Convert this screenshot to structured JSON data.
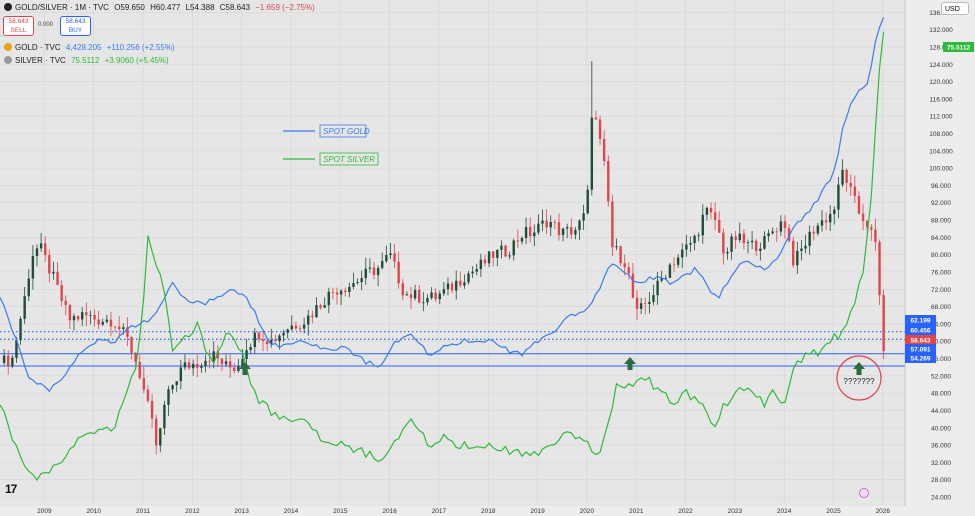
{
  "header": {
    "symbol_line": "GOLD/SILVER · 1M · TVC",
    "o": "O59.650",
    "h": "H60.477",
    "l": "L54.388",
    "c": "C58.643",
    "change": "−1.659 (−2.75%)",
    "sell_price": "58.643",
    "sell_label": "SELL",
    "spread": "0.000",
    "buy_price": "58.643",
    "buy_label": "BUY",
    "gold_line": "GOLD · TVC",
    "gold_value": "4,428.205",
    "gold_change": "+110.256 (+2.55%)",
    "silver_line": "SILVER · TVC",
    "silver_value": "75.5112",
    "silver_change": "+3.9060 (+5.45%)",
    "currency": "USD"
  },
  "colors": {
    "up": "#1f4d3a",
    "down": "#e0454b",
    "gold": "#3b7bf0",
    "silver": "#2fba3a",
    "level": "#2962ff",
    "marker": "#2e6b3a",
    "circle": "#e0454b"
  },
  "icons": [
    "gold-coin-icon",
    "silver-coin-icon",
    "up-arrow-marker-icon",
    "lightning-icon",
    "tradingview-logo-icon"
  ],
  "annotations": {
    "legend_gold": "SPOT GOLD",
    "legend_silver": "SPOT SILVER",
    "question": "???????"
  },
  "chart_data": [
    {
      "type": "candlestick",
      "series": "GOLD/SILVER ratio (monthly)",
      "x_ticks": [
        "2009",
        "2010",
        "2011",
        "2012",
        "2013",
        "2014",
        "2015",
        "2016",
        "2017",
        "2018",
        "2019",
        "2020",
        "2021",
        "2022",
        "2023",
        "2024",
        "2025",
        "2026"
      ],
      "x_range": [
        2008.2,
        2026.55
      ],
      "ylim": [
        24,
        137
      ],
      "y_ticks": [
        "136.000",
        "132.000",
        "128.000",
        "124.000",
        "120.000",
        "116.000",
        "112.000",
        "108.000",
        "104.000",
        "100.000",
        "96.000",
        "92.000",
        "88.000",
        "84.000",
        "80.000",
        "76.000",
        "72.000",
        "68.000",
        "64.000",
        "60.000",
        "56.000",
        "52.000",
        "48.000",
        "44.000",
        "40.000",
        "36.000",
        "32.000",
        "28.000",
        "24.000"
      ],
      "anchors": [
        [
          2008.2,
          55
        ],
        [
          2008.45,
          56
        ],
        [
          2008.7,
          70
        ],
        [
          2008.85,
          80
        ],
        [
          2009.0,
          82
        ],
        [
          2009.3,
          74
        ],
        [
          2009.6,
          65
        ],
        [
          2009.9,
          66
        ],
        [
          2010.2,
          65
        ],
        [
          2010.5,
          65
        ],
        [
          2010.8,
          60
        ],
        [
          2011.0,
          54
        ],
        [
          2011.3,
          40
        ],
        [
          2011.4,
          34
        ],
        [
          2011.5,
          44
        ],
        [
          2011.7,
          50
        ],
        [
          2011.9,
          54
        ],
        [
          2012.2,
          55
        ],
        [
          2012.5,
          57
        ],
        [
          2012.8,
          54
        ],
        [
          2013.0,
          54
        ],
        [
          2013.2,
          59
        ],
        [
          2013.45,
          62
        ],
        [
          2013.7,
          60
        ],
        [
          2014.0,
          63
        ],
        [
          2014.4,
          65
        ],
        [
          2014.8,
          70
        ],
        [
          2015.0,
          72
        ],
        [
          2015.3,
          73
        ],
        [
          2015.7,
          76
        ],
        [
          2015.9,
          77
        ],
        [
          2016.1,
          80
        ],
        [
          2016.4,
          71
        ],
        [
          2016.8,
          70
        ],
        [
          2017.0,
          70
        ],
        [
          2017.3,
          72
        ],
        [
          2017.6,
          75
        ],
        [
          2017.9,
          77
        ],
        [
          2018.2,
          80
        ],
        [
          2018.5,
          81
        ],
        [
          2018.8,
          85
        ],
        [
          2019.0,
          85
        ],
        [
          2019.3,
          88
        ],
        [
          2019.6,
          85
        ],
        [
          2019.9,
          86
        ],
        [
          2020.1,
          90
        ],
        [
          2020.2,
          113
        ],
        [
          2020.3,
          110
        ],
        [
          2020.5,
          97
        ],
        [
          2020.6,
          82
        ],
        [
          2020.9,
          78
        ],
        [
          2021.0,
          72
        ],
        [
          2021.1,
          66
        ],
        [
          2021.25,
          68
        ],
        [
          2021.5,
          72
        ],
        [
          2021.8,
          78
        ],
        [
          2022.0,
          80
        ],
        [
          2022.3,
          84
        ],
        [
          2022.5,
          90
        ],
        [
          2022.7,
          88
        ],
        [
          2022.9,
          80
        ],
        [
          2023.1,
          84
        ],
        [
          2023.4,
          82
        ],
        [
          2023.7,
          83
        ],
        [
          2023.9,
          86
        ],
        [
          2024.1,
          88
        ],
        [
          2024.3,
          78
        ],
        [
          2024.5,
          82
        ],
        [
          2024.7,
          86
        ],
        [
          2024.9,
          88
        ],
        [
          2025.1,
          90
        ],
        [
          2025.3,
          100
        ],
        [
          2025.4,
          96
        ],
        [
          2025.6,
          90
        ],
        [
          2025.8,
          87
        ],
        [
          2025.95,
          82
        ],
        [
          2026.05,
          68
        ],
        [
          2026.1,
          58.6
        ]
      ]
    },
    {
      "type": "line",
      "series": "SPOT GOLD",
      "ylim": [
        0,
        137
      ],
      "anchors": [
        [
          2008.2,
          56
        ],
        [
          2008.5,
          45
        ],
        [
          2008.8,
          33
        ],
        [
          2009.0,
          32
        ],
        [
          2009.2,
          30
        ],
        [
          2009.5,
          34
        ],
        [
          2009.8,
          40
        ],
        [
          2010.2,
          44
        ],
        [
          2010.5,
          43
        ],
        [
          2010.9,
          48
        ],
        [
          2011.3,
          50
        ],
        [
          2011.5,
          54
        ],
        [
          2011.7,
          60
        ],
        [
          2011.9,
          56
        ],
        [
          2012.3,
          54
        ],
        [
          2012.6,
          56
        ],
        [
          2012.9,
          58
        ],
        [
          2013.2,
          56
        ],
        [
          2013.4,
          51
        ],
        [
          2013.6,
          44
        ],
        [
          2013.9,
          42
        ],
        [
          2014.3,
          44
        ],
        [
          2014.7,
          42
        ],
        [
          2014.9,
          41
        ],
        [
          2015.2,
          42
        ],
        [
          2015.6,
          38
        ],
        [
          2015.9,
          37
        ],
        [
          2016.2,
          43
        ],
        [
          2016.5,
          46
        ],
        [
          2016.9,
          40
        ],
        [
          2017.2,
          42
        ],
        [
          2017.6,
          44
        ],
        [
          2017.9,
          44
        ],
        [
          2018.2,
          44
        ],
        [
          2018.5,
          41
        ],
        [
          2018.8,
          40
        ],
        [
          2019.0,
          43
        ],
        [
          2019.4,
          46
        ],
        [
          2019.8,
          51
        ],
        [
          2020.1,
          53
        ],
        [
          2020.3,
          57
        ],
        [
          2020.6,
          66
        ],
        [
          2020.9,
          62
        ],
        [
          2021.2,
          60
        ],
        [
          2021.5,
          62
        ],
        [
          2021.8,
          60
        ],
        [
          2022.1,
          62
        ],
        [
          2022.3,
          64
        ],
        [
          2022.6,
          58
        ],
        [
          2022.8,
          56
        ],
        [
          2023.0,
          62
        ],
        [
          2023.3,
          66
        ],
        [
          2023.6,
          64
        ],
        [
          2023.8,
          64
        ],
        [
          2024.0,
          68
        ],
        [
          2024.3,
          76
        ],
        [
          2024.6,
          80
        ],
        [
          2024.9,
          86
        ],
        [
          2025.1,
          90
        ],
        [
          2025.3,
          104
        ],
        [
          2025.5,
          112
        ],
        [
          2025.8,
          116
        ],
        [
          2025.95,
          128
        ],
        [
          2026.1,
          134
        ]
      ]
    },
    {
      "type": "line",
      "series": "SPOT SILVER",
      "ylim": [
        8,
        82
      ],
      "anchors": [
        [
          2008.2,
          22
        ],
        [
          2008.4,
          18
        ],
        [
          2008.6,
          14
        ],
        [
          2008.9,
          11
        ],
        [
          2009.2,
          12
        ],
        [
          2009.5,
          14
        ],
        [
          2009.8,
          17
        ],
        [
          2010.2,
          18
        ],
        [
          2010.5,
          18
        ],
        [
          2010.8,
          24
        ],
        [
          2010.95,
          28
        ],
        [
          2011.1,
          36
        ],
        [
          2011.2,
          48
        ],
        [
          2011.3,
          44
        ],
        [
          2011.5,
          40
        ],
        [
          2011.7,
          30
        ],
        [
          2011.9,
          32
        ],
        [
          2012.2,
          34
        ],
        [
          2012.5,
          28
        ],
        [
          2012.8,
          33
        ],
        [
          2013.1,
          30
        ],
        [
          2013.4,
          23
        ],
        [
          2013.7,
          21
        ],
        [
          2014.0,
          19.5
        ],
        [
          2014.4,
          20
        ],
        [
          2014.8,
          16
        ],
        [
          2015.1,
          16
        ],
        [
          2015.5,
          15
        ],
        [
          2015.9,
          14
        ],
        [
          2016.2,
          16
        ],
        [
          2016.5,
          20
        ],
        [
          2016.9,
          16
        ],
        [
          2017.2,
          17
        ],
        [
          2017.5,
          16
        ],
        [
          2017.8,
          16
        ],
        [
          2018.1,
          16
        ],
        [
          2018.5,
          15
        ],
        [
          2018.9,
          14.5
        ],
        [
          2019.2,
          15
        ],
        [
          2019.6,
          17
        ],
        [
          2019.9,
          17.5
        ],
        [
          2020.1,
          17
        ],
        [
          2020.3,
          14
        ],
        [
          2020.5,
          18
        ],
        [
          2020.7,
          25
        ],
        [
          2020.9,
          24
        ],
        [
          2021.1,
          26
        ],
        [
          2021.3,
          26
        ],
        [
          2021.6,
          24
        ],
        [
          2021.9,
          22
        ],
        [
          2022.1,
          24
        ],
        [
          2022.4,
          22
        ],
        [
          2022.7,
          19
        ],
        [
          2022.9,
          22
        ],
        [
          2023.1,
          24
        ],
        [
          2023.4,
          24
        ],
        [
          2023.7,
          22
        ],
        [
          2023.9,
          24
        ],
        [
          2024.1,
          22
        ],
        [
          2024.3,
          28
        ],
        [
          2024.6,
          30
        ],
        [
          2024.9,
          30
        ],
        [
          2025.1,
          32
        ],
        [
          2025.3,
          33
        ],
        [
          2025.5,
          37
        ],
        [
          2025.7,
          42
        ],
        [
          2025.85,
          52
        ],
        [
          2026.0,
          70
        ],
        [
          2026.1,
          78
        ]
      ]
    },
    {
      "type": "levels",
      "dotted": [
        "62.199",
        "60.456"
      ],
      "solid": [
        "57.091",
        "54.269"
      ],
      "current": "58.643",
      "silver_price_tag": "75.5112"
    }
  ]
}
